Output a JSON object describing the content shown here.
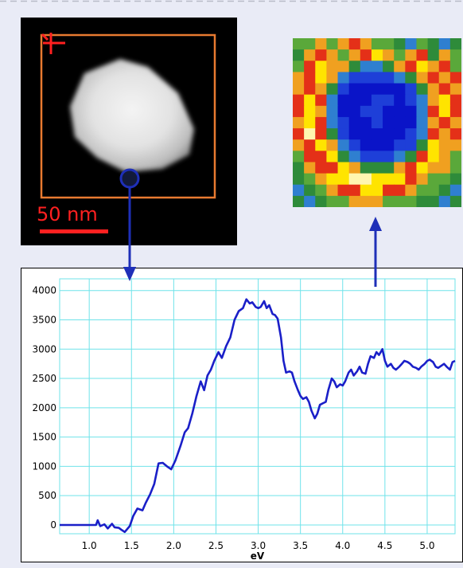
{
  "stem_panel": {
    "scale_label": "50 nm",
    "roi_color": "#e87a30",
    "scale_color": "#ff2020",
    "probe_color": "#1e2fb8"
  },
  "map_panel": {
    "grid": [
      [
        4,
        4,
        5,
        4,
        5,
        6,
        5,
        4,
        4,
        3,
        2,
        4,
        3,
        2,
        3
      ],
      [
        3,
        5,
        6,
        5,
        4,
        5,
        6,
        7,
        5,
        4,
        5,
        6,
        3,
        5,
        4
      ],
      [
        4,
        6,
        7,
        5,
        5,
        3,
        2,
        2,
        3,
        5,
        6,
        7,
        5,
        6,
        4
      ],
      [
        5,
        6,
        7,
        5,
        2,
        1,
        1,
        1,
        1,
        2,
        3,
        5,
        6,
        5,
        6
      ],
      [
        5,
        6,
        5,
        3,
        1,
        0,
        0,
        0,
        0,
        0,
        1,
        3,
        5,
        6,
        5
      ],
      [
        6,
        7,
        6,
        2,
        0,
        0,
        0,
        1,
        1,
        0,
        1,
        2,
        5,
        7,
        6
      ],
      [
        6,
        7,
        5,
        2,
        0,
        0,
        1,
        1,
        0,
        0,
        0,
        2,
        6,
        7,
        6
      ],
      [
        5,
        7,
        6,
        2,
        1,
        0,
        0,
        1,
        0,
        0,
        0,
        2,
        5,
        6,
        5
      ],
      [
        6,
        8,
        6,
        3,
        1,
        0,
        0,
        0,
        0,
        0,
        1,
        2,
        6,
        5,
        6
      ],
      [
        5,
        6,
        7,
        5,
        2,
        1,
        0,
        0,
        0,
        1,
        1,
        3,
        7,
        5,
        5
      ],
      [
        4,
        6,
        6,
        7,
        3,
        2,
        1,
        1,
        1,
        2,
        3,
        6,
        7,
        5,
        4
      ],
      [
        3,
        5,
        6,
        6,
        7,
        5,
        3,
        3,
        3,
        5,
        6,
        7,
        5,
        5,
        4
      ],
      [
        3,
        4,
        5,
        7,
        7,
        8,
        8,
        7,
        7,
        7,
        6,
        5,
        4,
        4,
        3
      ],
      [
        2,
        3,
        4,
        5,
        6,
        6,
        7,
        7,
        6,
        6,
        5,
        4,
        4,
        3,
        2
      ],
      [
        3,
        2,
        3,
        4,
        4,
        5,
        5,
        5,
        4,
        4,
        4,
        3,
        3,
        2,
        3
      ]
    ]
  },
  "chart_data": {
    "type": "line",
    "xlabel": "eV",
    "ylabel": "",
    "xlim": [
      0.65,
      5.33
    ],
    "ylim": [
      -150,
      4200
    ],
    "x_ticks": [
      "1.0",
      "1.5",
      "2.0",
      "2.5",
      "3.0",
      "3.5",
      "4.0",
      "4.5",
      "5.0"
    ],
    "y_ticks": [
      "0",
      "500",
      "1000",
      "1500",
      "2000",
      "2500",
      "3000",
      "3500",
      "4000"
    ],
    "grid": true,
    "line_color": "#1a1fc8",
    "grid_color": "#6fe3ea",
    "series": [
      {
        "x": [
          0.65,
          1.0,
          1.08,
          1.1,
          1.13,
          1.18,
          1.22,
          1.27,
          1.3,
          1.35,
          1.38,
          1.42,
          1.48,
          1.52,
          1.57,
          1.63,
          1.67,
          1.72,
          1.77,
          1.82,
          1.87,
          1.92,
          1.97,
          2.02,
          2.08,
          2.13,
          2.17,
          2.22,
          2.27,
          2.32,
          2.36,
          2.4,
          2.44,
          2.48,
          2.53,
          2.57,
          2.62,
          2.67,
          2.72,
          2.77,
          2.82,
          2.86,
          2.9,
          2.93,
          2.97,
          3.0,
          3.03,
          3.07,
          3.1,
          3.13,
          3.17,
          3.2,
          3.23,
          3.27,
          3.3,
          3.33,
          3.37,
          3.4,
          3.43,
          3.47,
          3.5,
          3.53,
          3.57,
          3.6,
          3.63,
          3.67,
          3.7,
          3.73,
          3.77,
          3.8,
          3.83,
          3.87,
          3.9,
          3.93,
          3.97,
          4.0,
          4.03,
          4.07,
          4.1,
          4.13,
          4.17,
          4.2,
          4.23,
          4.27,
          4.3,
          4.33,
          4.37,
          4.4,
          4.43,
          4.47,
          4.5,
          4.53,
          4.57,
          4.6,
          4.63,
          4.67,
          4.7,
          4.73,
          4.77,
          4.8,
          4.83,
          4.87,
          4.9,
          4.93,
          4.97,
          5.0,
          5.03,
          5.07,
          5.1,
          5.13,
          5.17,
          5.2,
          5.23,
          5.27,
          5.3,
          5.33
        ],
        "y": [
          0,
          0,
          0,
          80,
          -20,
          10,
          -60,
          20,
          -40,
          -50,
          -80,
          -120,
          -20,
          150,
          280,
          250,
          380,
          520,
          700,
          1050,
          1060,
          1000,
          950,
          1100,
          1350,
          1580,
          1650,
          1900,
          2200,
          2450,
          2300,
          2550,
          2650,
          2800,
          2950,
          2850,
          3050,
          3200,
          3500,
          3650,
          3700,
          3850,
          3780,
          3800,
          3720,
          3700,
          3720,
          3820,
          3700,
          3750,
          3600,
          3580,
          3520,
          3200,
          2800,
          2600,
          2620,
          2600,
          2450,
          2300,
          2200,
          2150,
          2180,
          2100,
          1950,
          1820,
          1900,
          2050,
          2080,
          2100,
          2300,
          2500,
          2450,
          2350,
          2400,
          2380,
          2450,
          2600,
          2650,
          2550,
          2620,
          2700,
          2600,
          2580,
          2750,
          2880,
          2850,
          2950,
          2900,
          3000,
          2800,
          2700,
          2750,
          2680,
          2650,
          2700,
          2750,
          2800,
          2780,
          2750,
          2700,
          2680,
          2650,
          2700,
          2750,
          2800,
          2820,
          2780,
          2700,
          2680,
          2720,
          2750,
          2700,
          2650,
          2780,
          2800
        ]
      }
    ]
  }
}
